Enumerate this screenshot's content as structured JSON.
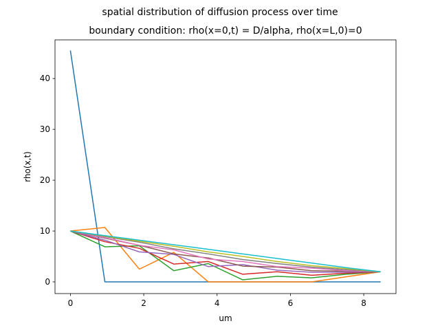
{
  "chart_data": {
    "type": "line",
    "suptitle": "spatial distribution of diffusion process over time",
    "title": "boundary condition: rho(x=0,t) = D/alpha, rho(x=L,0)=0",
    "xlabel": "um",
    "ylabel": "rho(x,t)",
    "xlim": [
      -0.42,
      8.88
    ],
    "ylim": [
      -2.3,
      47.6
    ],
    "xticks": [
      0,
      2,
      4,
      6,
      8
    ],
    "yticks": [
      0,
      10,
      20,
      30,
      40
    ],
    "xtick_labels": [
      "0",
      "2",
      "4",
      "6",
      "8"
    ],
    "ytick_labels": [
      "0",
      "10",
      "20",
      "30",
      "40"
    ],
    "grid": false,
    "legend": "none",
    "x": [
      0,
      0.94,
      1.88,
      2.82,
      3.76,
      4.7,
      5.64,
      6.58,
      7.52,
      8.46
    ],
    "series": [
      {
        "color": "#1f77b4",
        "values": [
          45.5,
          0,
          0,
          0,
          0,
          0,
          0,
          0,
          0,
          0
        ]
      },
      {
        "color": "#ff7f0e",
        "values": [
          10.0,
          10.7,
          2.5,
          5.8,
          0,
          0,
          0,
          0,
          1.0,
          2.0
        ]
      },
      {
        "color": "#2ca02c",
        "values": [
          10.0,
          6.9,
          7.1,
          2.2,
          3.6,
          0.4,
          1.1,
          0.8,
          1.5,
          2.0
        ]
      },
      {
        "color": "#d62728",
        "values": [
          10.0,
          7.9,
          6.6,
          3.5,
          4.0,
          1.5,
          2.0,
          1.3,
          1.7,
          2.0
        ]
      },
      {
        "color": "#9467bd",
        "values": [
          10.0,
          8.2,
          5.9,
          5.4,
          3.0,
          3.4,
          2.3,
          1.9,
          1.9,
          2.0
        ]
      },
      {
        "color": "#8c564b",
        "values": [
          10.0,
          8.6,
          7.2,
          5.5,
          4.7,
          3.1,
          2.9,
          2.2,
          2.1,
          2.0
        ]
      },
      {
        "color": "#e377c2",
        "values": [
          10.0,
          8.7,
          7.2,
          6.3,
          4.5,
          4.0,
          3.0,
          2.7,
          2.2,
          2.0
        ]
      },
      {
        "color": "#7f7f7f",
        "values": [
          10.0,
          8.9,
          7.8,
          6.5,
          5.5,
          4.4,
          3.6,
          2.9,
          2.4,
          2.0
        ]
      },
      {
        "color": "#bcbd22",
        "values": [
          10.0,
          9.0,
          8.0,
          7.0,
          5.9,
          5.0,
          4.0,
          3.2,
          2.6,
          2.0
        ]
      },
      {
        "color": "#17becf",
        "values": [
          10.0,
          9.1,
          8.2,
          7.3,
          6.4,
          5.5,
          4.6,
          3.7,
          2.8,
          2.0
        ]
      }
    ]
  }
}
